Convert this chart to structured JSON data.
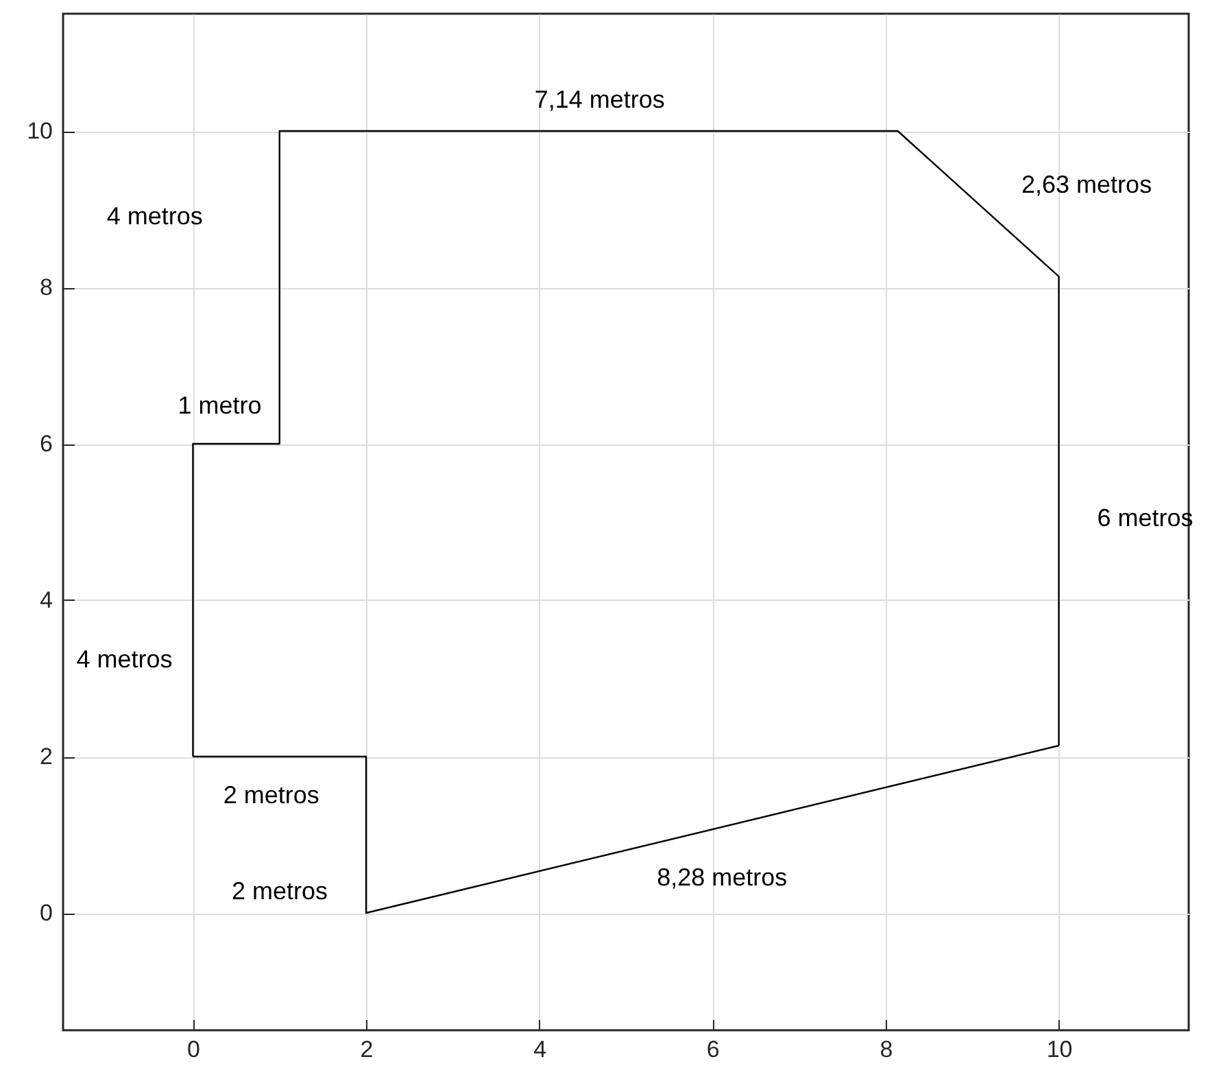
{
  "chart_data": {
    "type": "line",
    "series": [
      {
        "color": "#000000",
        "x": [
          0,
          0,
          1,
          1,
          8.14,
          10,
          10
        ],
        "values": [
          2,
          6,
          6,
          10,
          10,
          8.14,
          2.14
        ]
      },
      {
        "color": "#000000",
        "x": [
          0,
          2,
          2,
          10
        ],
        "values": [
          2,
          2,
          0,
          2.14
        ]
      }
    ],
    "xlim": [
      -1.5,
      11.5
    ],
    "ylim": [
      -1.5,
      11.5
    ],
    "xticks": [
      0,
      2,
      4,
      6,
      8,
      10
    ],
    "yticks": [
      0,
      2,
      4,
      6,
      8,
      10
    ],
    "grid": true,
    "annotations": [
      "4 metros",
      "1 metro",
      "4 metros",
      "7,14 metros",
      "2,63 metros",
      "6 metros",
      "2 metros",
      "2 metros",
      "8,28 metros"
    ]
  }
}
